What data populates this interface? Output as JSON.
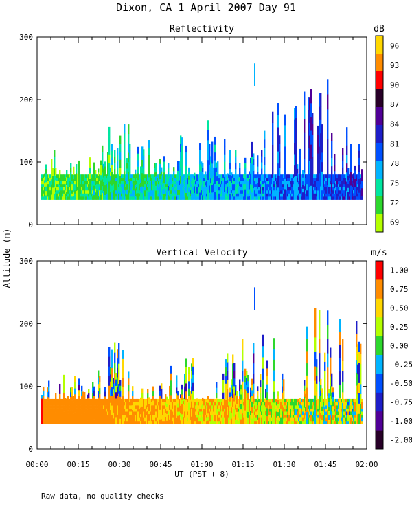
{
  "header": {
    "title": "Dixon, CA   1 April 2007   Day  91"
  },
  "footer": {
    "note": "Raw data, no quality checks"
  },
  "colors": {
    "reflectivity_scale": [
      "#b4ff00",
      "#2dd72d",
      "#00e6a0",
      "#00b4ff",
      "#0050ff",
      "#1e1ec8",
      "#500096",
      "#280028",
      "#ff0000",
      "#ff8c00",
      "#ffd700"
    ],
    "velocity_scale": [
      "#280028",
      "#500096",
      "#1e1ec8",
      "#0050ff",
      "#00b4ff",
      "#2dd72d",
      "#b4ff00",
      "#ffd700",
      "#ff8c00",
      "#ff0000"
    ]
  },
  "chart_data": [
    {
      "type": "heatmap",
      "title": "Reflectivity",
      "xlabel": "UT  (PST + 8)",
      "ylabel": "Altitude (m)",
      "ylim": [
        0,
        300
      ],
      "yticks": [
        "0",
        "100",
        "200",
        "300"
      ],
      "xticks": [
        "00:00",
        "00:15",
        "00:30",
        "00:45",
        "01:00",
        "01:15",
        "01:30",
        "01:45",
        "02:00"
      ],
      "xlim_minutes": [
        0,
        120
      ],
      "colorbar": {
        "unit": "dB",
        "labels": [
          "69",
          "72",
          "75",
          "78",
          "81",
          "84",
          "87",
          "90",
          "93",
          "96"
        ]
      },
      "typical_echo_top_m": [
        {
          "t_min": 0,
          "top_m": 100
        },
        {
          "t_min": 15,
          "top_m": 100
        },
        {
          "t_min": 30,
          "top_m": 160
        },
        {
          "t_min": 45,
          "top_m": 100
        },
        {
          "t_min": 60,
          "top_m": 160
        },
        {
          "t_min": 75,
          "top_m": 160
        },
        {
          "t_min": 90,
          "top_m": 180
        },
        {
          "t_min": 105,
          "top_m": 220
        },
        {
          "t_min": 120,
          "top_m": 180
        }
      ]
    },
    {
      "type": "heatmap",
      "title": "Vertical Velocity",
      "xlabel": "UT  (PST + 8)",
      "ylabel": "Altitude (m)",
      "ylim": [
        0,
        300
      ],
      "yticks": [
        "0",
        "100",
        "200",
        "300"
      ],
      "xticks": [
        "00:00",
        "00:15",
        "00:30",
        "00:45",
        "01:00",
        "01:15",
        "01:30",
        "01:45",
        "02:00"
      ],
      "xlim_minutes": [
        0,
        120
      ],
      "colorbar": {
        "unit": "m/s",
        "labels": [
          "1.00",
          "0.75",
          "0.50",
          "0.25",
          "0.00",
          "-0.25",
          "-0.50",
          "-0.75",
          "-1.00",
          "-2.00"
        ]
      },
      "typical_echo_top_m": [
        {
          "t_min": 0,
          "top_m": 100
        },
        {
          "t_min": 15,
          "top_m": 100
        },
        {
          "t_min": 30,
          "top_m": 160
        },
        {
          "t_min": 45,
          "top_m": 100
        },
        {
          "t_min": 60,
          "top_m": 160
        },
        {
          "t_min": 75,
          "top_m": 160
        },
        {
          "t_min": 90,
          "top_m": 180
        },
        {
          "t_min": 105,
          "top_m": 220
        },
        {
          "t_min": 120,
          "top_m": 180
        }
      ]
    }
  ]
}
